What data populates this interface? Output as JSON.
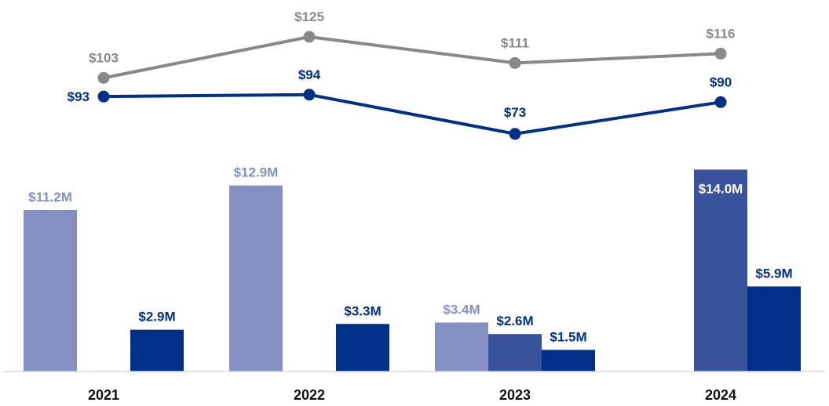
{
  "chart_data": {
    "type": "bar+line",
    "categories": [
      "2021",
      "2022",
      "2023",
      "2024"
    ],
    "bar_series": [
      {
        "name": "series-a",
        "color": "#8490c1",
        "label_color": "#8490c1",
        "values": [
          11.2,
          12.9,
          3.4,
          null
        ],
        "labels": [
          "$11.2M",
          "$12.9M",
          "$3.4M",
          ""
        ]
      },
      {
        "name": "series-b",
        "color": "#38529c",
        "label_color": "#003087",
        "values": [
          null,
          null,
          2.6,
          14.0
        ],
        "labels": [
          "",
          "",
          "$2.6M",
          "$14.0M"
        ]
      },
      {
        "name": "series-c",
        "color": "#003087",
        "label_color": "#003087",
        "values": [
          2.9,
          3.3,
          1.5,
          5.9
        ],
        "labels": [
          "$2.9M",
          "$3.3M",
          "$1.5M",
          "$5.9M"
        ]
      }
    ],
    "line_series": [
      {
        "name": "gray-line",
        "color": "#888888",
        "values": [
          103,
          125,
          111,
          116
        ],
        "labels": [
          "$103",
          "$125",
          "$111",
          "$116"
        ]
      },
      {
        "name": "navy-line",
        "color": "#003087",
        "values": [
          93,
          94,
          73,
          90
        ],
        "labels": [
          "$93",
          "$94",
          "$73",
          "$90"
        ]
      }
    ],
    "bar_ylim": [
      0,
      15
    ],
    "line_ylim": [
      40,
      130
    ],
    "title": "",
    "xlabel": "",
    "ylabel": "",
    "grid": false,
    "legend": "none"
  }
}
